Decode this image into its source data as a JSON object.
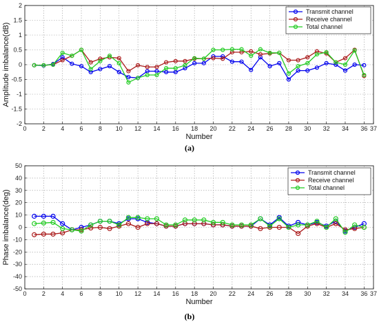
{
  "chart_data": [
    {
      "type": "line",
      "xlabel": "Number",
      "ylabel": "Amplitude imbalance(dB)",
      "caption": "(a)",
      "xlim": [
        0,
        37
      ],
      "ylim": [
        -2,
        2
      ],
      "xticks": [
        0,
        2,
        4,
        6,
        8,
        10,
        12,
        14,
        16,
        18,
        20,
        22,
        24,
        26,
        28,
        30,
        32,
        34,
        36,
        37
      ],
      "yticks": [
        -2,
        -1.5,
        -1,
        -0.5,
        0,
        0.5,
        1,
        1.5,
        2
      ],
      "grid": true,
      "legend_position": "top-right",
      "x": [
        1,
        2,
        3,
        4,
        5,
        6,
        7,
        8,
        9,
        10,
        11,
        12,
        13,
        14,
        15,
        16,
        17,
        18,
        19,
        20,
        21,
        22,
        23,
        24,
        25,
        26,
        27,
        28,
        29,
        30,
        31,
        32,
        33,
        34,
        35,
        36
      ],
      "series": [
        {
          "name": "Transmit channel",
          "color": "#0000ee",
          "values": [
            -0.02,
            -0.03,
            0.02,
            0.25,
            0.03,
            -0.05,
            -0.25,
            -0.15,
            -0.05,
            -0.25,
            -0.42,
            -0.45,
            -0.22,
            -0.22,
            -0.25,
            -0.25,
            -0.12,
            0.05,
            0.05,
            0.28,
            0.28,
            0.1,
            0.1,
            -0.18,
            0.25,
            -0.05,
            0.05,
            -0.5,
            -0.2,
            -0.2,
            -0.1,
            0.05,
            0.0,
            -0.2,
            0.0,
            -0.02
          ]
        },
        {
          "name": "Receive channel",
          "color": "#aa1a1a",
          "values": [
            -0.02,
            -0.02,
            0.0,
            0.15,
            0.3,
            0.5,
            0.08,
            0.2,
            0.25,
            0.22,
            -0.22,
            -0.02,
            -0.08,
            -0.08,
            0.08,
            0.12,
            0.12,
            0.2,
            0.2,
            0.22,
            0.2,
            0.42,
            0.42,
            0.45,
            0.35,
            0.38,
            0.4,
            0.15,
            0.15,
            0.25,
            0.45,
            0.38,
            0.08,
            0.22,
            0.5,
            -0.38
          ]
        },
        {
          "name": "Total channel",
          "color": "#22cc22",
          "values": [
            -0.02,
            -0.02,
            0.0,
            0.4,
            0.3,
            0.5,
            -0.15,
            0.12,
            0.3,
            0.05,
            -0.6,
            -0.45,
            -0.35,
            -0.35,
            -0.12,
            -0.12,
            -0.02,
            0.22,
            0.2,
            0.5,
            0.5,
            0.52,
            0.52,
            0.3,
            0.52,
            0.4,
            0.4,
            -0.3,
            -0.05,
            0.05,
            0.35,
            0.42,
            0.08,
            0.0,
            0.48,
            -0.35
          ]
        }
      ]
    },
    {
      "type": "line",
      "xlabel": "Number",
      "ylabel": "Phase imbalance(deg)",
      "caption": "(b)",
      "xlim": [
        0,
        37
      ],
      "ylim": [
        -50,
        50
      ],
      "xticks": [
        0,
        2,
        4,
        6,
        8,
        10,
        12,
        14,
        16,
        18,
        20,
        22,
        24,
        26,
        28,
        30,
        32,
        34,
        36,
        37
      ],
      "yticks": [
        -50,
        -40,
        -30,
        -20,
        -10,
        0,
        10,
        20,
        30,
        40,
        50
      ],
      "grid": true,
      "legend_position": "top-right",
      "x": [
        1,
        2,
        3,
        4,
        5,
        6,
        7,
        8,
        9,
        10,
        11,
        12,
        13,
        14,
        15,
        16,
        17,
        18,
        19,
        20,
        21,
        22,
        23,
        24,
        25,
        26,
        27,
        28,
        29,
        30,
        31,
        32,
        33,
        34,
        35,
        36
      ],
      "series": [
        {
          "name": "Transmit channel",
          "color": "#0000ee",
          "values": [
            9,
            9,
            9,
            3,
            -2,
            0,
            2,
            5,
            5,
            3,
            7,
            7,
            4,
            3,
            1,
            1,
            3,
            3,
            3,
            2,
            2,
            1,
            1,
            1,
            7,
            2,
            8,
            1,
            4,
            2,
            4,
            1,
            5,
            -3,
            0,
            3
          ]
        },
        {
          "name": "Receive channel",
          "color": "#aa1a1a",
          "values": [
            -6,
            -5.5,
            -5.5,
            -4.5,
            -2,
            -2,
            -0.5,
            0,
            -1,
            1,
            3,
            0,
            3,
            3,
            1,
            1,
            3,
            3,
            3,
            2,
            2,
            1,
            1,
            1,
            -1,
            0,
            0,
            0,
            -5,
            1,
            3,
            0,
            3,
            -2,
            -1,
            0
          ]
        },
        {
          "name": "Total channel",
          "color": "#22cc22",
          "values": [
            3,
            3.5,
            4,
            -1,
            -2,
            -3,
            2,
            5,
            5,
            2,
            8,
            8,
            7,
            7,
            2,
            2,
            6,
            6,
            6,
            4,
            4,
            2,
            2,
            2,
            7,
            1,
            7,
            0,
            2,
            2,
            5,
            0,
            7,
            -4,
            2,
            0
          ]
        }
      ]
    }
  ]
}
